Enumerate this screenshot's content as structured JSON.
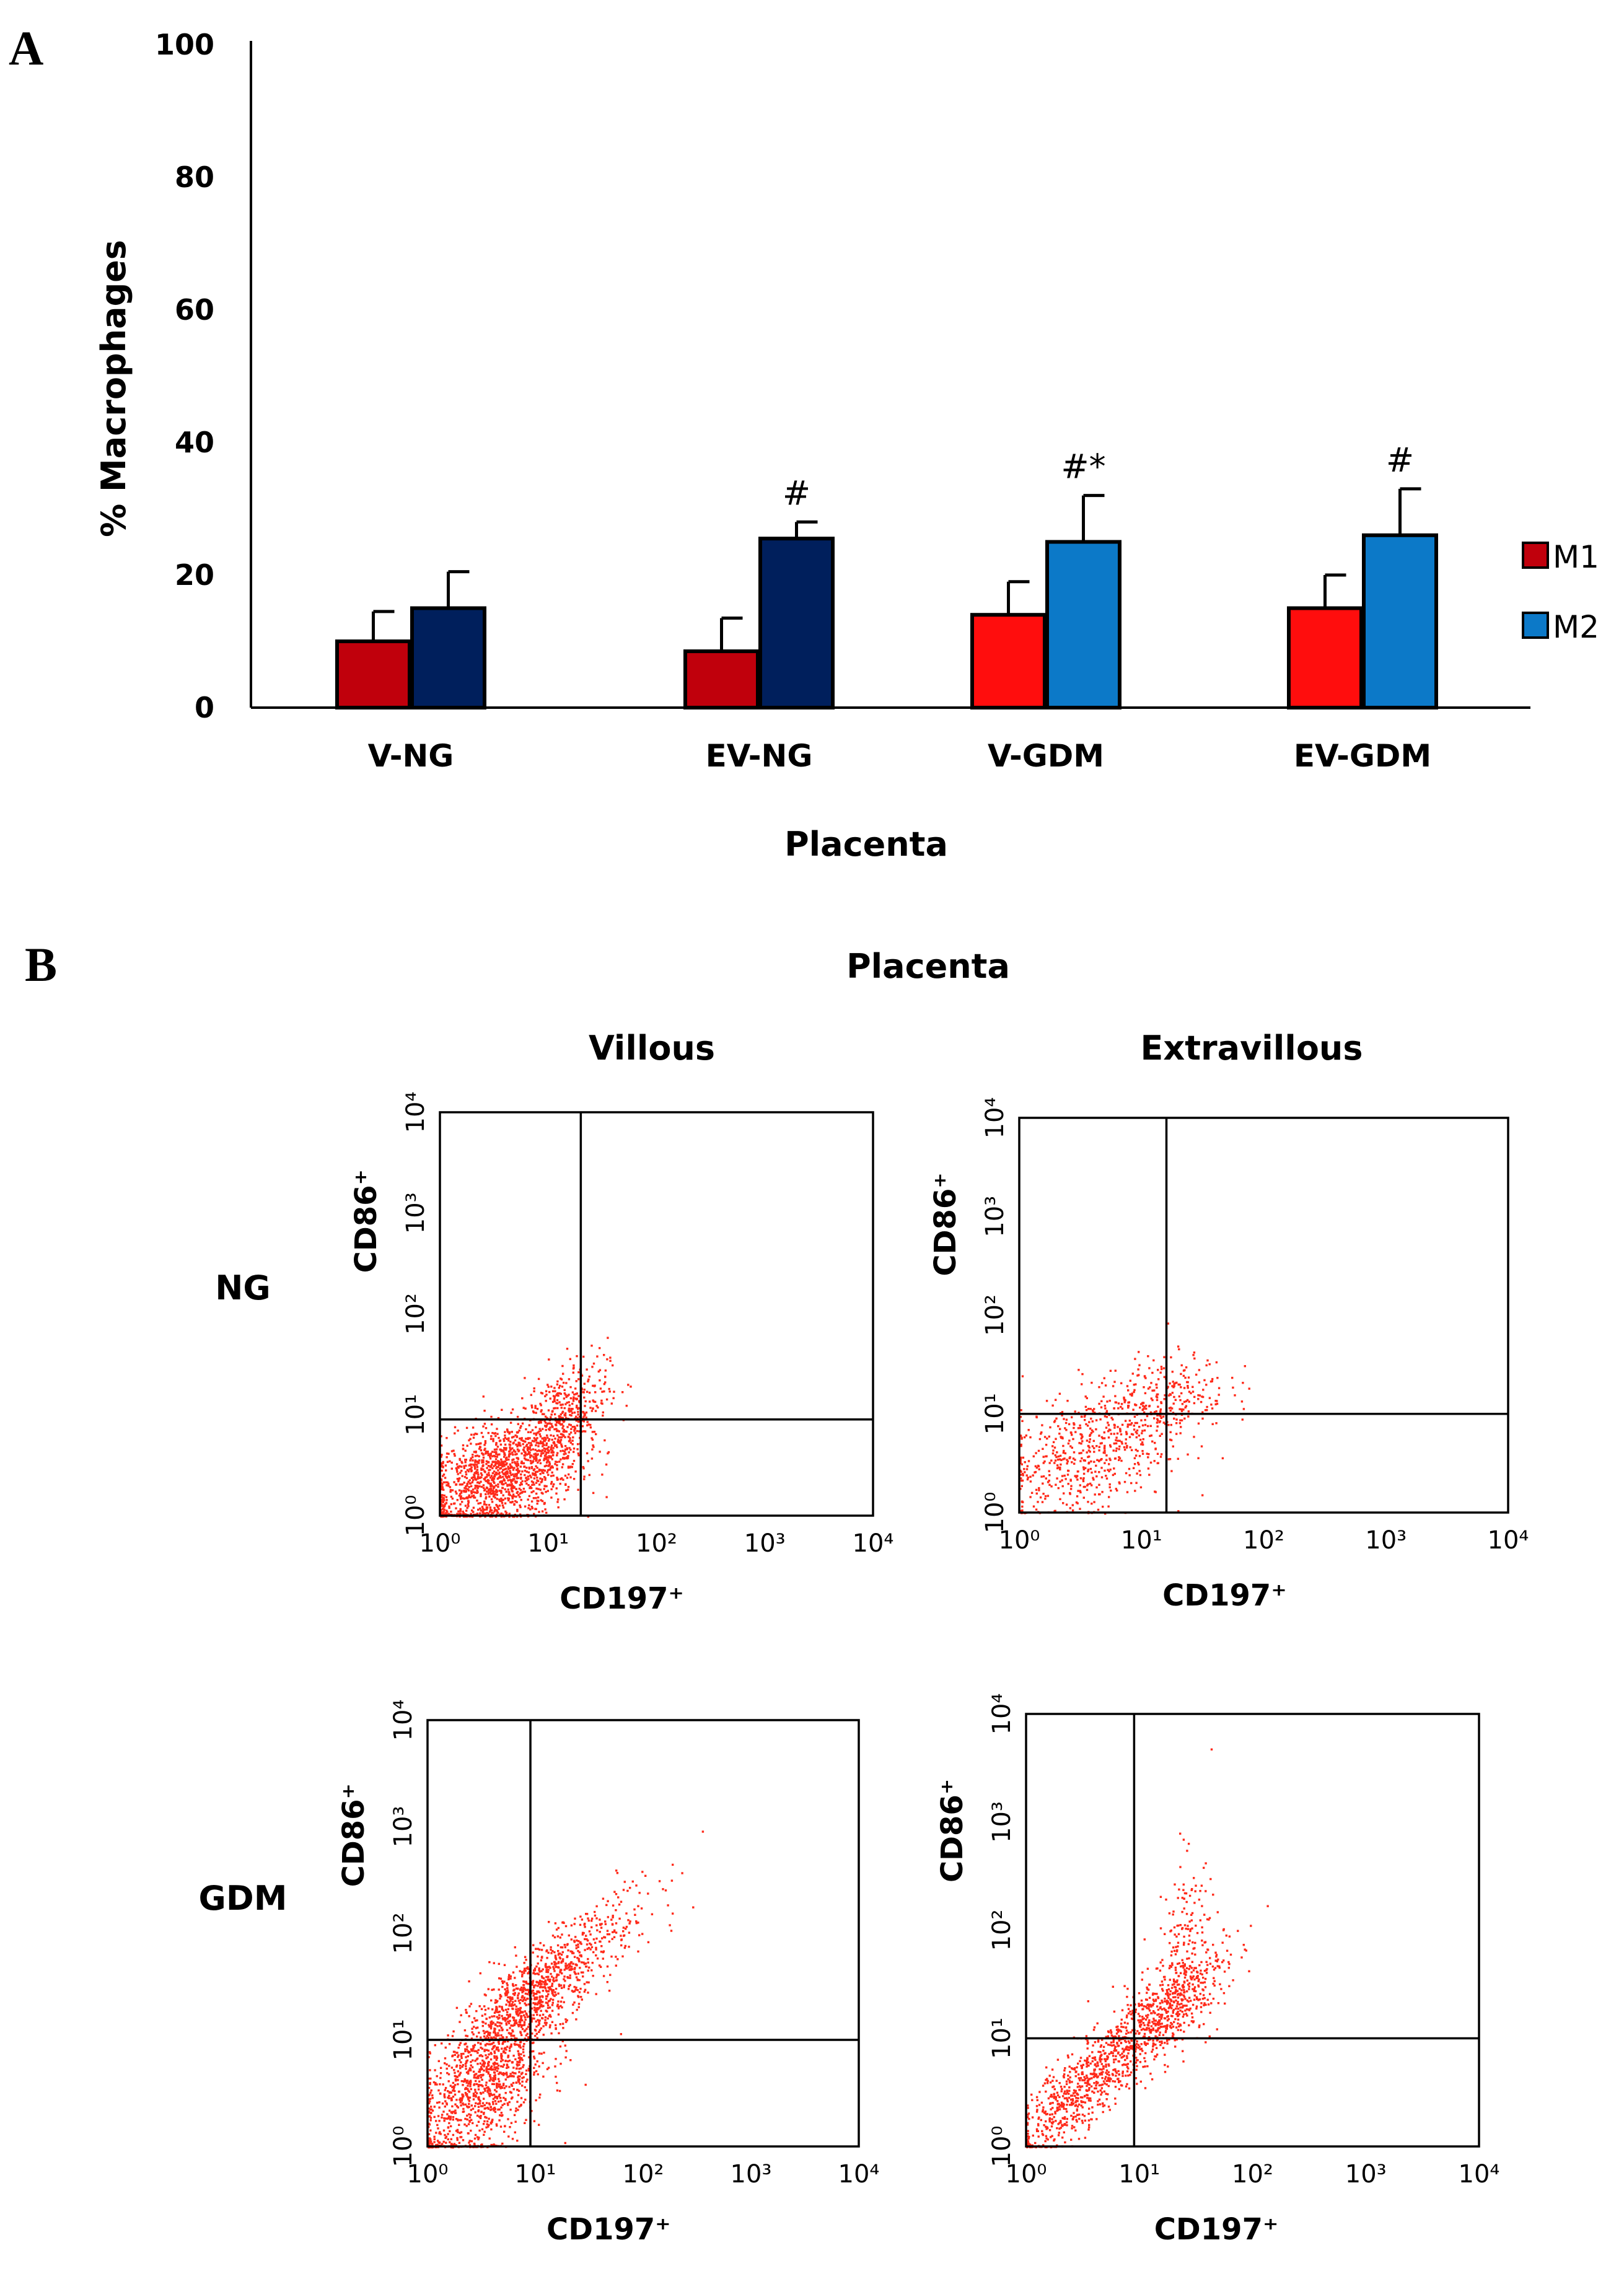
{
  "panel_a_letter": "A",
  "panel_b_letter": "B",
  "chart_data": [
    {
      "type": "bar",
      "panel": "A",
      "title": "",
      "xlabel": "Placenta",
      "ylabel": "% Macrophages",
      "ylim": [
        0,
        100
      ],
      "yticks": [
        "0",
        "20",
        "40",
        "60",
        "80",
        "100"
      ],
      "categories": [
        "V-NG",
        "EV-NG",
        "V-GDM",
        "EV-GDM"
      ],
      "series": [
        {
          "name": "M1",
          "values": [
            10,
            8.5,
            14,
            15
          ],
          "errors": [
            4.5,
            5,
            5,
            5
          ]
        },
        {
          "name": "M2",
          "values": [
            15,
            25.5,
            25,
            26
          ],
          "errors": [
            5.5,
            2.5,
            7,
            7
          ]
        }
      ],
      "bar_colors": {
        "M1": [
          "#c0000c",
          "#c0000c",
          "#ff0d0d",
          "#ff0d0d"
        ],
        "M2": [
          "#001f5c",
          "#001f5c",
          "#0c79c8",
          "#0c79c8"
        ]
      },
      "annotations": [
        "",
        "#",
        "#*",
        "#"
      ],
      "legend": [
        {
          "label": "M1",
          "color": "#c0000c"
        },
        {
          "label": "M2",
          "color": "#0c79c8"
        }
      ],
      "legend_position": "right"
    },
    {
      "type": "scatter",
      "panel": "B",
      "title": "Placenta",
      "column_labels": [
        "Villous",
        "Extravillous"
      ],
      "row_labels": [
        "NG",
        "GDM"
      ],
      "xlabel": "CD197⁺",
      "ylabel": "CD86⁺",
      "xscale": "log",
      "yscale": "log",
      "xlim": [
        1,
        10000
      ],
      "ylim": [
        1,
        10000
      ],
      "tick_labels": [
        "10⁰",
        "10¹",
        "10²",
        "10³",
        "10⁴"
      ],
      "point_color": "#ff2a1a",
      "plots": [
        {
          "row": "NG",
          "column": "Villous",
          "gate_x": 20,
          "gate_y": 9
        },
        {
          "row": "NG",
          "column": "Extravillous",
          "gate_x": 16,
          "gate_y": 10
        },
        {
          "row": "GDM",
          "column": "Villous",
          "gate_x": 9,
          "gate_y": 10
        },
        {
          "row": "GDM",
          "column": "Extravillous",
          "gate_x": 9,
          "gate_y": 10
        }
      ]
    }
  ]
}
